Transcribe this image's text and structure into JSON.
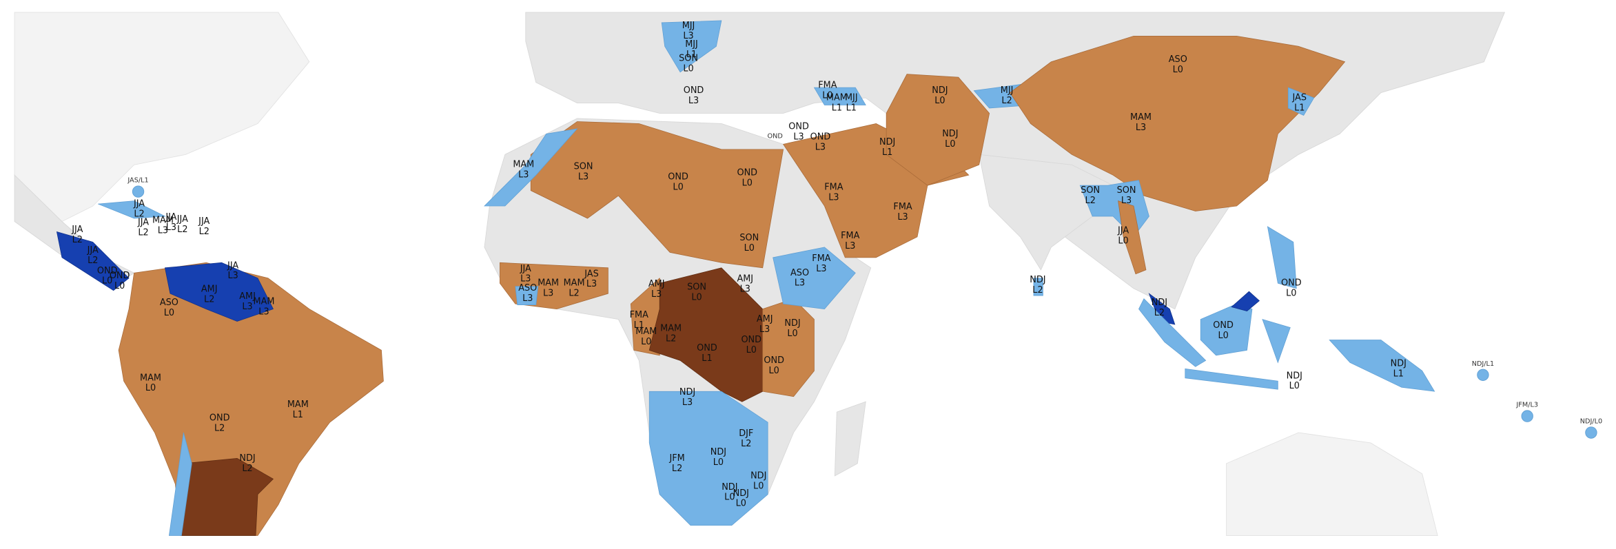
{
  "regions": [
    {
      "season": "MJJ",
      "level": "L3"
    },
    {
      "season": "MJJ",
      "level": "L1"
    },
    {
      "season": "SON",
      "level": "L0"
    },
    {
      "season": "OND",
      "level": "L3"
    },
    {
      "season": "FMA",
      "level": "L0"
    },
    {
      "season": "MAM",
      "level": "L1"
    },
    {
      "season": "MJJ",
      "level": "L1"
    },
    {
      "season": "NDJ",
      "level": "L0"
    },
    {
      "season": "MJJ",
      "level": "L2"
    },
    {
      "season": "ASO",
      "level": "L0"
    },
    {
      "season": "MAM",
      "level": "L3"
    },
    {
      "season": "JAS",
      "level": "L1"
    },
    {
      "season": "MAM",
      "level": "L3"
    },
    {
      "season": "SON",
      "level": "L3"
    },
    {
      "season": "OND",
      "level": "L0"
    },
    {
      "season": "OND",
      "level": "L0"
    },
    {
      "season": "OND",
      "level": "L3"
    },
    {
      "season": "OND",
      "level": "L3"
    },
    {
      "season": "NDJ",
      "level": "L1"
    },
    {
      "season": "NDJ",
      "level": "L0"
    },
    {
      "season": "FMA",
      "level": "L3"
    },
    {
      "season": "FMA",
      "level": "L3"
    },
    {
      "season": "FMA",
      "level": "L3"
    },
    {
      "season": "SON",
      "level": "L0"
    },
    {
      "season": "FMA",
      "level": "L3"
    },
    {
      "season": "ASO",
      "level": "L3"
    },
    {
      "season": "SON",
      "level": "L2"
    },
    {
      "season": "SON",
      "level": "L3"
    },
    {
      "season": "JJA",
      "level": "L0"
    },
    {
      "season": "NDJ",
      "level": "L2"
    },
    {
      "season": "AMJ",
      "level": "L3"
    },
    {
      "season": "SON",
      "level": "L0"
    },
    {
      "season": "AMJ",
      "level": "L3"
    },
    {
      "season": "JJA",
      "level": "L3"
    },
    {
      "season": "MAM",
      "level": "L3"
    },
    {
      "season": "MAM",
      "level": "L2"
    },
    {
      "season": "JAS",
      "level": "L3"
    },
    {
      "season": "ASO",
      "level": "L3"
    },
    {
      "season": "FMA",
      "level": "L1"
    },
    {
      "season": "MAM",
      "level": "L0"
    },
    {
      "season": "MAM",
      "level": "L2"
    },
    {
      "season": "OND",
      "level": "L1"
    },
    {
      "season": "AMJ",
      "level": "L3"
    },
    {
      "season": "NDJ",
      "level": "L0"
    },
    {
      "season": "OND",
      "level": "L0"
    },
    {
      "season": "OND",
      "level": "L0"
    },
    {
      "season": "NDJ",
      "level": "L3"
    },
    {
      "season": "JFM",
      "level": "L2"
    },
    {
      "season": "NDJ",
      "level": "L0"
    },
    {
      "season": "DJF",
      "level": "L2"
    },
    {
      "season": "NDJ",
      "level": "L0"
    },
    {
      "season": "NDJ",
      "level": "L0"
    },
    {
      "season": "NDJ",
      "level": "L0"
    },
    {
      "season": "NDJ",
      "level": "L2"
    },
    {
      "season": "OND",
      "level": "L0"
    },
    {
      "season": "OND",
      "level": "L0"
    },
    {
      "season": "NDJ",
      "level": "L0"
    },
    {
      "season": "NDJ",
      "level": "L1"
    },
    {
      "season": "JJA",
      "level": "L2"
    },
    {
      "season": "JJA",
      "level": "L2"
    },
    {
      "season": "MAM",
      "level": "L3"
    },
    {
      "season": "JJA",
      "level": "L3"
    },
    {
      "season": "JJA",
      "level": "L2"
    },
    {
      "season": "JJA",
      "level": "L2"
    },
    {
      "season": "JJA",
      "level": "L2"
    },
    {
      "season": "JJA",
      "level": "L2"
    },
    {
      "season": "OND",
      "level": "L0"
    },
    {
      "season": "OND",
      "level": "L0"
    },
    {
      "season": "JJA",
      "level": "L3"
    },
    {
      "season": "AMJ",
      "level": "L2"
    },
    {
      "season": "AMJ",
      "level": "L3"
    },
    {
      "season": "MAM",
      "level": "L3"
    },
    {
      "season": "ASO",
      "level": "L0"
    },
    {
      "season": "MAM",
      "level": "L0"
    },
    {
      "season": "MAM",
      "level": "L1"
    },
    {
      "season": "OND",
      "level": "L2"
    },
    {
      "season": "NDJ",
      "level": "L2"
    }
  ],
  "point_labels": [
    "JAS/L1",
    "NDJ/L1",
    "JFM/L3",
    "NDJ/L0",
    "OND"
  ]
}
